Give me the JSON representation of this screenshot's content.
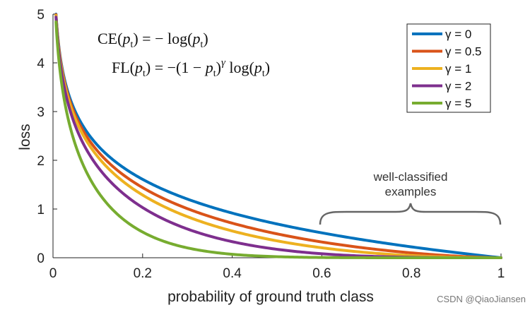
{
  "chart_data": {
    "type": "line",
    "title": "",
    "xlabel": "probability of ground truth class",
    "ylabel": "loss",
    "xlim": [
      0,
      1
    ],
    "ylim": [
      0,
      5
    ],
    "xticks": [
      0,
      0.2,
      0.4,
      0.6,
      0.8,
      1
    ],
    "xtick_labels": [
      "0",
      "0.2",
      "0.4",
      "0.6",
      "0.8",
      "1"
    ],
    "yticks": [
      0,
      1,
      2,
      3,
      4,
      5
    ],
    "ytick_labels": [
      "0",
      "1",
      "2",
      "3",
      "4",
      "5"
    ],
    "x": [
      0.0067,
      0.02,
      0.05,
      0.1,
      0.15,
      0.2,
      0.3,
      0.4,
      0.5,
      0.6,
      0.7,
      0.8,
      0.9,
      1.0
    ],
    "series": [
      {
        "name": "γ = 0",
        "gamma": 0,
        "color": "#0072BD",
        "values": [
          5.0,
          3.912,
          2.996,
          2.303,
          1.897,
          1.609,
          1.204,
          0.916,
          0.693,
          0.511,
          0.357,
          0.223,
          0.105,
          0.0
        ]
      },
      {
        "name": "γ = 0.5",
        "gamma": 0.5,
        "color": "#D95319",
        "values": [
          4.983,
          3.873,
          2.92,
          2.184,
          1.749,
          1.439,
          1.007,
          0.71,
          0.49,
          0.323,
          0.195,
          0.1,
          0.033,
          0.0
        ]
      },
      {
        "name": "γ = 1",
        "gamma": 1,
        "color": "#EDB120",
        "values": [
          4.966,
          3.834,
          2.846,
          2.072,
          1.613,
          1.288,
          0.843,
          0.55,
          0.347,
          0.204,
          0.107,
          0.045,
          0.011,
          0.0
        ]
      },
      {
        "name": "γ = 2",
        "gamma": 2,
        "color": "#7E2F8E",
        "values": [
          4.933,
          3.757,
          2.704,
          1.865,
          1.371,
          1.03,
          0.59,
          0.33,
          0.173,
          0.082,
          0.032,
          0.009,
          0.001,
          0.0
        ]
      },
      {
        "name": "γ = 5",
        "gamma": 5,
        "color": "#77AC30",
        "values": [
          4.834,
          3.536,
          2.318,
          1.36,
          0.842,
          0.527,
          0.202,
          0.071,
          0.022,
          0.005,
          0.001,
          0.0,
          0.0,
          0.0
        ]
      }
    ],
    "legend_position": "top-right",
    "annotations": {
      "equation_ce": "CE(pt) = − log(pt)",
      "equation_fl": "FL(pt) = −(1 − pt)γ log(pt)",
      "brace_label_line1": "well-classified",
      "brace_label_line2": "examples",
      "brace_range": [
        0.6,
        1.0
      ]
    }
  },
  "watermark": "CSDN @QiaoJiansen"
}
